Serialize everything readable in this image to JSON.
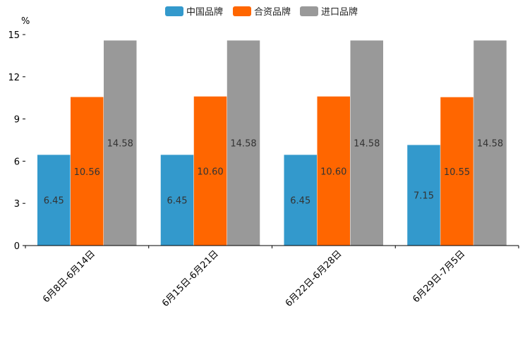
{
  "chart_data": {
    "type": "bar",
    "title": "",
    "xlabel": "",
    "ylabel": "%",
    "ylim": [
      0,
      15
    ],
    "yticks": [
      0,
      3,
      6,
      9,
      12,
      15
    ],
    "grid": false,
    "legend_position": "top-center",
    "categories": [
      "6月8日-6月14日",
      "6月15日-6月21日",
      "6月22日-6月28日",
      "6月29日-7月5日"
    ],
    "series": [
      {
        "name": "中国品牌",
        "color": "#3399cc",
        "values": [
          6.45,
          6.45,
          6.45,
          7.15
        ],
        "labels": [
          "6.45",
          "6.45",
          "6.45",
          "7.15"
        ]
      },
      {
        "name": "合资品牌",
        "color": "#ff6600",
        "values": [
          10.56,
          10.6,
          10.6,
          10.55
        ],
        "labels": [
          "10.56",
          "10.60",
          "10.60",
          "10.55"
        ]
      },
      {
        "name": "进口品牌",
        "color": "#999999",
        "values": [
          14.58,
          14.58,
          14.58,
          14.58
        ],
        "labels": [
          "14.58",
          "14.58",
          "14.58",
          "14.58"
        ]
      }
    ]
  }
}
